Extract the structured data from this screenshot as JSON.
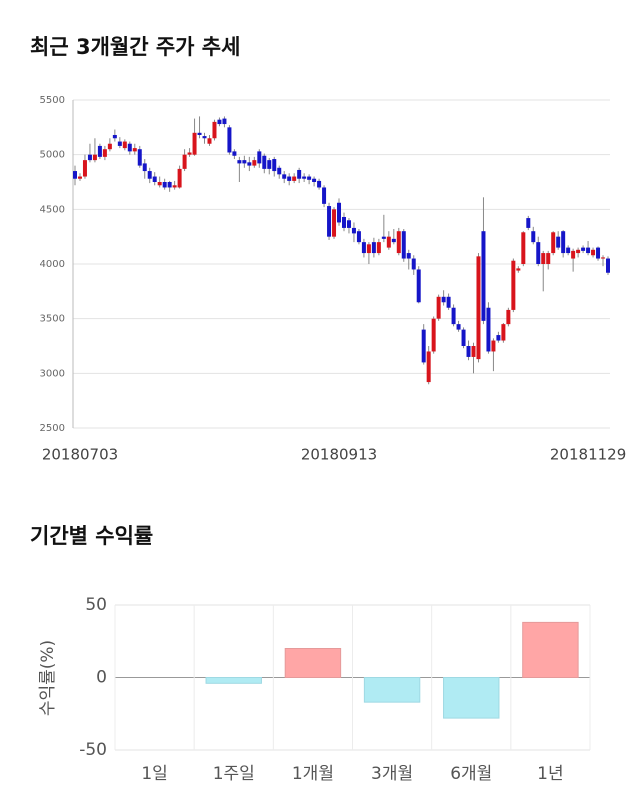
{
  "charts": [
    {
      "type": "candlestick",
      "title": "최근 3개월간 주가 추세",
      "categories": [
        "20180703",
        null,
        null,
        null,
        null,
        null,
        null,
        null,
        null,
        null,
        null,
        null,
        null,
        null,
        null,
        null,
        null,
        null,
        null,
        null,
        null,
        null,
        null,
        null,
        null,
        null,
        null,
        null,
        null,
        null,
        null,
        null,
        null,
        null,
        null,
        null,
        null,
        null,
        null,
        null,
        null,
        null,
        null,
        null,
        null,
        null,
        null,
        null,
        null,
        null,
        null,
        null,
        null,
        "20180913",
        null,
        null,
        null,
        null,
        null,
        null,
        null,
        null,
        null,
        null,
        null,
        null,
        null,
        null,
        null,
        null,
        null,
        null,
        null,
        null,
        null,
        null,
        null,
        null,
        null,
        null,
        null,
        null,
        null,
        null,
        null,
        null,
        null,
        null,
        null,
        null,
        null,
        null,
        null,
        null,
        null,
        null,
        null,
        null,
        null,
        null,
        null,
        null,
        null,
        "20181129",
        null,
        null,
        null,
        null
      ],
      "open": [
        4850,
        4780,
        4800,
        5000,
        4950,
        5080,
        4980,
        5050,
        5180,
        5120,
        5060,
        5100,
        5030,
        5050,
        4920,
        4850,
        4800,
        4720,
        4750,
        4750,
        4700,
        4700,
        4870,
        5000,
        5000,
        5200,
        5170,
        5100,
        5150,
        5320,
        5330,
        5250,
        5030,
        4950,
        4950,
        4930,
        4900,
        5030,
        4990,
        4950,
        4960,
        4880,
        4820,
        4800,
        4760,
        4860,
        4800,
        4800,
        4780,
        4760,
        4700,
        4530,
        4250,
        4560,
        4430,
        4400,
        4330,
        4300,
        4200,
        4100,
        4200,
        4100,
        4250,
        4150,
        4230,
        4100,
        4300,
        4100,
        4050,
        3950,
        3400,
        2920,
        3200,
        3500,
        3700,
        3700,
        3600,
        3450,
        3400,
        3250,
        3150,
        3130,
        4300,
        3600,
        3200,
        3350,
        3300,
        3450,
        3580,
        3940,
        4000,
        4420,
        4300,
        4200,
        4000,
        4000,
        4100,
        4250,
        4300,
        4150,
        4050,
        4100,
        4150,
        4150,
        4080,
        4150,
        4050,
        4050
      ],
      "high": [
        4900,
        4830,
        5000,
        5100,
        5150,
        5100,
        5080,
        5150,
        5230,
        5160,
        5140,
        5120,
        5100,
        5080,
        4960,
        4880,
        4840,
        4800,
        4780,
        4760,
        4760,
        4900,
        5050,
        5060,
        5330,
        5350,
        5200,
        5180,
        5320,
        5340,
        5350,
        5270,
        5050,
        4980,
        4990,
        4980,
        4980,
        5050,
        5010,
        4970,
        4980,
        4900,
        4850,
        4830,
        4830,
        4880,
        4830,
        4820,
        4800,
        4780,
        4720,
        4560,
        4520,
        4600,
        4470,
        4420,
        4380,
        4320,
        4230,
        4200,
        4240,
        4230,
        4450,
        4300,
        4320,
        4330,
        4320,
        4130,
        4080,
        3980,
        3450,
        3250,
        3520,
        3720,
        3760,
        3730,
        3630,
        3480,
        3420,
        3300,
        3280,
        4100,
        4610,
        3650,
        3320,
        3380,
        3460,
        3600,
        4050,
        3980,
        4300,
        4440,
        4340,
        4250,
        4120,
        4120,
        4300,
        4300,
        4310,
        4170,
        4140,
        4150,
        4170,
        4210,
        4150,
        4160,
        4080,
        4070
      ],
      "low": [
        4720,
        4760,
        4780,
        4930,
        4930,
        4960,
        4950,
        5030,
        5120,
        5060,
        5040,
        5000,
        5000,
        4880,
        4780,
        4740,
        4720,
        4700,
        4680,
        4660,
        4680,
        4690,
        4850,
        4980,
        4990,
        5150,
        5100,
        5080,
        5130,
        5260,
        5250,
        5000,
        4960,
        4750,
        4880,
        4850,
        4880,
        4880,
        4830,
        4820,
        4800,
        4780,
        4740,
        4720,
        4740,
        4740,
        4750,
        4730,
        4710,
        4680,
        4520,
        4220,
        4230,
        4350,
        4300,
        4280,
        4200,
        4180,
        4060,
        4000,
        4060,
        4080,
        4200,
        4130,
        4180,
        4080,
        4020,
        3950,
        3900,
        3640,
        3080,
        2900,
        3180,
        3480,
        3620,
        3580,
        3430,
        3380,
        3230,
        3120,
        3000,
        3100,
        3450,
        3180,
        3020,
        3280,
        3280,
        3430,
        3560,
        3920,
        3980,
        4310,
        4180,
        3980,
        3750,
        3950,
        4080,
        4130,
        4060,
        4080,
        3930,
        4060,
        4100,
        4080,
        4060,
        4030,
        3980,
        3900
      ],
      "close": [
        4780,
        4800,
        4950,
        4950,
        5000,
        4980,
        5050,
        5100,
        5150,
        5080,
        5120,
        5030,
        5060,
        4900,
        4850,
        4780,
        4750,
        4750,
        4700,
        4700,
        4720,
        4870,
        5000,
        5020,
        5200,
        5180,
        5150,
        5150,
        5300,
        5280,
        5280,
        5020,
        4990,
        4920,
        4920,
        4900,
        4950,
        4920,
        4870,
        4870,
        4850,
        4820,
        4780,
        4760,
        4800,
        4780,
        4780,
        4770,
        4750,
        4700,
        4550,
        4250,
        4500,
        4380,
        4330,
        4330,
        4280,
        4200,
        4100,
        4180,
        4100,
        4200,
        4230,
        4250,
        4200,
        4300,
        4050,
        4050,
        3950,
        3650,
        3100,
        3200,
        3500,
        3700,
        3650,
        3600,
        3450,
        3400,
        3250,
        3150,
        3250,
        4070,
        3480,
        3200,
        3300,
        3300,
        3450,
        3580,
        4030,
        3960,
        4290,
        4330,
        4200,
        4000,
        4100,
        4100,
        4290,
        4150,
        4100,
        4100,
        4120,
        4130,
        4120,
        4100,
        4130,
        4050,
        4060,
        3920
      ],
      "up_color": "#d8141c",
      "down_color": "#1515c8",
      "ylim": [
        2500,
        5500
      ],
      "yticks": [
        2500,
        3000,
        3500,
        4000,
        4500,
        5000,
        5500
      ],
      "grid": true
    },
    {
      "type": "bar",
      "title": "기간별 수익률",
      "y_label": "수익률(%)",
      "categories": [
        "1일",
        "1주일",
        "1개월",
        "3개월",
        "6개월",
        "1년"
      ],
      "values": [
        0,
        -4,
        20,
        -17,
        -28,
        38
      ],
      "positive_color": "#ffa6a6",
      "negative_color": "#b0ebf3",
      "ylim": [
        -50,
        50
      ],
      "yticks": [
        -50,
        0,
        50
      ],
      "grid": true
    }
  ]
}
